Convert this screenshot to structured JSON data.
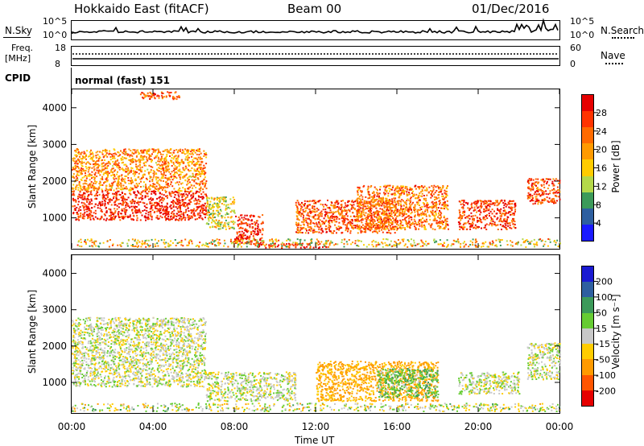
{
  "header": {
    "station": "Hokkaido East (fitACF)",
    "beam": "Beam 00",
    "date": "01/Dec/2016"
  },
  "side_labels": {
    "nsky": "N.Sky",
    "nsearch": "N.Search",
    "freq_top": "Freq.",
    "freq_unit": "[MHz]",
    "cpid": "CPID",
    "nave": "Nave"
  },
  "mini_ticks": {
    "nsky_left_top": "10^5",
    "nsky_left_bottom": "10^0",
    "nsky_right_top": "10^5",
    "nsky_right_bottom": "10^0",
    "freq_left_top": "18",
    "freq_left_bottom": "8",
    "nave_right_top": "60",
    "nave_right_bottom": "0"
  },
  "cpid_text": "normal (fast) 151",
  "chart_data": [
    {
      "type": "heatmap",
      "panel": "power",
      "ylabel": "Slant Range [km]",
      "yticks": [
        "4000",
        "3000",
        "2000",
        "1000"
      ],
      "ytick_values": [
        4000,
        3000,
        2000,
        1000
      ],
      "ylim": [
        180,
        4500
      ],
      "xticks": [
        "00:00",
        "04:00",
        "08:00",
        "12:00",
        "16:00",
        "20:00",
        "00:00"
      ],
      "colorbar_label": "Power [dB]",
      "colorbar_ticks": [
        "28",
        "24",
        "20",
        "16",
        "12",
        "8",
        "4"
      ],
      "colors": [
        "#e60000",
        "#ff3300",
        "#ff6a00",
        "#ff9a00",
        "#ffcc00",
        "#b4d84a",
        "#3c9a5a",
        "#2e5fa0",
        "#1a1aff"
      ],
      "regions": [
        {
          "x": [
            0.0,
            6.6
          ],
          "y": [
            950,
            1750
          ],
          "value": 28
        },
        {
          "x": [
            0.0,
            6.6
          ],
          "y": [
            1750,
            2900
          ],
          "value": 20
        },
        {
          "x": [
            3.3,
            5.3
          ],
          "y": [
            4250,
            4450
          ],
          "value": 24
        },
        {
          "x": [
            6.6,
            8.0
          ],
          "y": [
            700,
            1600
          ],
          "value": 14
        },
        {
          "x": [
            8.0,
            9.4
          ],
          "y": [
            300,
            1100
          ],
          "value": 27
        },
        {
          "x": [
            9.0,
            12.5
          ],
          "y": [
            200,
            320
          ],
          "value": 27
        },
        {
          "x": [
            11.0,
            16.0
          ],
          "y": [
            600,
            1500
          ],
          "value": 24
        },
        {
          "x": [
            14.0,
            18.5
          ],
          "y": [
            700,
            1900
          ],
          "value": 22
        },
        {
          "x": [
            19.0,
            21.8
          ],
          "y": [
            700,
            1500
          ],
          "value": 26
        },
        {
          "x": [
            22.4,
            24.0
          ],
          "y": [
            1400,
            2100
          ],
          "value": 25
        }
      ]
    },
    {
      "type": "heatmap",
      "panel": "velocity",
      "ylabel": "Slant Range [km]",
      "yticks": [
        "4000",
        "3000",
        "2000",
        "1000"
      ],
      "ytick_values": [
        4000,
        3000,
        2000,
        1000
      ],
      "ylim": [
        180,
        4500
      ],
      "xticks": [
        "00:00",
        "04:00",
        "08:00",
        "12:00",
        "16:00",
        "20:00",
        "00:00"
      ],
      "xlabel": "Time UT",
      "colorbar_label": "Velocity [m s⁻¹]",
      "colorbar_ticks": [
        "200",
        "100",
        "50",
        "15",
        "-15",
        "-50",
        "-100",
        "-200"
      ],
      "colors": [
        "#1a1ad2",
        "#2e5fa0",
        "#3c9a5a",
        "#66cc33",
        "#c8c8c8",
        "#ffcc00",
        "#ff9a00",
        "#ff5500",
        "#e60000"
      ],
      "regions": [
        {
          "x": [
            0.0,
            6.6
          ],
          "y": [
            900,
            1800
          ],
          "value": 0
        },
        {
          "x": [
            0.0,
            6.6
          ],
          "y": [
            1800,
            2800
          ],
          "value": 0
        },
        {
          "x": [
            6.6,
            11.0
          ],
          "y": [
            500,
            1300
          ],
          "value": 0
        },
        {
          "x": [
            12.0,
            18.0
          ],
          "y": [
            500,
            1600
          ],
          "value": -60
        },
        {
          "x": [
            15.0,
            18.0
          ],
          "y": [
            600,
            1400
          ],
          "value": 40
        },
        {
          "x": [
            19.0,
            22.0
          ],
          "y": [
            700,
            1300
          ],
          "value": 0
        },
        {
          "x": [
            22.4,
            24.0
          ],
          "y": [
            1100,
            2100
          ],
          "value": 0
        }
      ]
    }
  ]
}
